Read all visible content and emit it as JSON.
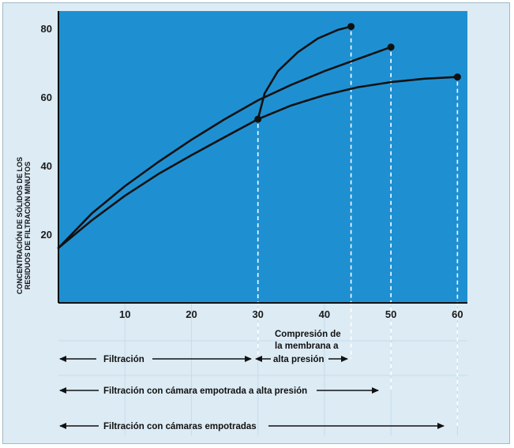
{
  "chart_data": {
    "type": "line",
    "ylabel": [
      "CONCENTRACIÓN DE SÓLIDOS DE LOS",
      "RESIDUOS DE FILTRACIÓN MINUTOS"
    ],
    "xlabel": "",
    "xlim": [
      0,
      61.5
    ],
    "ylim": [
      0,
      85
    ],
    "xticks": [
      10,
      20,
      30,
      40,
      50,
      60
    ],
    "yticks": [
      20,
      40,
      60,
      80
    ],
    "plot_background": "#1e90d2",
    "grid": true,
    "series": [
      {
        "key": "camaras-empotradas",
        "x": [
          0,
          5,
          10,
          15,
          20,
          25,
          30,
          35,
          40,
          45,
          50,
          55,
          60
        ],
        "y": [
          16,
          24,
          31.2,
          37.5,
          43,
          48.3,
          53.5,
          57.5,
          60.5,
          62.8,
          64.3,
          65.3,
          65.8
        ],
        "end_marker": true
      },
      {
        "key": "camara-empotrada-alta-presion",
        "x": [
          0,
          5,
          10,
          15,
          20,
          25,
          30,
          35,
          40,
          45,
          50
        ],
        "y": [
          16,
          26,
          34,
          41,
          47.5,
          53.5,
          59,
          63.5,
          67.5,
          71,
          74.5
        ],
        "end_marker": true
      },
      {
        "key": "compresion-membrana",
        "x": [
          30,
          31,
          33,
          36,
          39,
          42,
          44
        ],
        "y": [
          53.5,
          61,
          67.5,
          73,
          77,
          79.5,
          80.5
        ],
        "start_marker": true,
        "end_marker": true
      }
    ],
    "drop_lines_x": [
      30,
      44,
      50,
      60
    ],
    "annotations": {
      "filtracion": "Filtración",
      "compresion": [
        "Compresión de",
        "la membrana a",
        "alta presión"
      ],
      "alta_presion": "Filtración con cámara empotrada a alta presión",
      "camaras": "Filtración con cámaras empotradas"
    },
    "colors": {
      "line": "#111111",
      "frame": "#dcebf4",
      "grid": "#c4dced",
      "dash": "#ffffff"
    }
  }
}
